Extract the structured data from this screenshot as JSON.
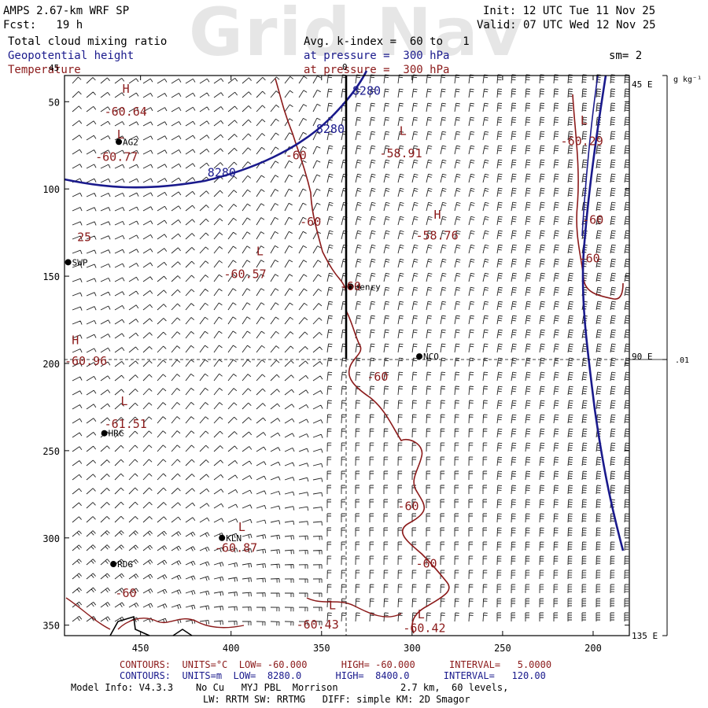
{
  "header": {
    "left_line1": "AMPS 2.67-km WRF SP",
    "left_line2": "Fcst:   19 h",
    "field1": "Total cloud mixing ratio",
    "field2": "Geopotential height",
    "field3": "Temperature",
    "avg": "Avg. k-index =  60 to   1",
    "press1": "at pressure =  300 hPa",
    "press2": "at pressure =  300 hPa",
    "init": "Init: 12 UTC Tue 11 Nov 25",
    "valid": "Valid: 07 UTC Wed 12 Nov 25",
    "sm": "sm= 2",
    "watermark": "Grid Nav"
  },
  "axes": {
    "y_ticks": [
      {
        "label": "50",
        "v": 50
      },
      {
        "label": "100",
        "v": 100
      },
      {
        "label": "150",
        "v": 150
      },
      {
        "label": "200",
        "v": 200
      },
      {
        "label": "250",
        "v": 250
      },
      {
        "label": "300",
        "v": 300
      },
      {
        "label": "350",
        "v": 350
      }
    ],
    "x_ticks": [
      {
        "label": "450",
        "v": 450
      },
      {
        "label": "400",
        "v": 400
      },
      {
        "label": "350",
        "v": 350
      },
      {
        "label": "300",
        "v": 300
      },
      {
        "label": "250",
        "v": 250
      },
      {
        "label": "200",
        "v": 200
      }
    ],
    "x_range": [
      492,
      180
    ],
    "y_range": [
      35,
      356
    ],
    "right_labels": [
      {
        "label": "45 E",
        "v": 45
      },
      {
        "label": "90 E",
        "v": 90
      },
      {
        "label": "135 E",
        "v": 135
      }
    ],
    "colorbar_top": "g kg⁻¹",
    "colorbar_mid": ".01",
    "top_tick_left": "45",
    "top_tick_mid": "0"
  },
  "stations": [
    {
      "name": "AG2",
      "x": 462,
      "y": 73
    },
    {
      "name": "SWP",
      "x": 490,
      "y": 142
    },
    {
      "name": "Henry",
      "x": 334,
      "y": 156
    },
    {
      "name": "NCO",
      "x": 296,
      "y": 196
    },
    {
      "name": "HRC",
      "x": 470,
      "y": 240
    },
    {
      "name": "KLN",
      "x": 405,
      "y": 300
    },
    {
      "name": "RDG",
      "x": 465,
      "y": 315
    }
  ],
  "labels": {
    "height": [
      {
        "text": "8280",
        "x": 333,
        "y": 46
      },
      {
        "text": "8280",
        "x": 353,
        "y": 68
      },
      {
        "text": "8280",
        "x": 413,
        "y": 93
      }
    ],
    "temp": [
      {
        "text": "H",
        "x": 460,
        "y": 45
      },
      {
        "text": "-60.64",
        "x": 470,
        "y": 58
      },
      {
        "text": "L",
        "x": 463,
        "y": 71
      },
      {
        "text": "-60.77",
        "x": 475,
        "y": 84
      },
      {
        "text": "-60",
        "x": 370,
        "y": 83
      },
      {
        "text": "L",
        "x": 307,
        "y": 69
      },
      {
        "text": "-58.91",
        "x": 318,
        "y": 82
      },
      {
        "text": "-60",
        "x": 362,
        "y": 121
      },
      {
        "text": "H",
        "x": 288,
        "y": 117
      },
      {
        "text": "-58.76",
        "x": 298,
        "y": 129
      },
      {
        "text": "L",
        "x": 207,
        "y": 63
      },
      {
        "text": "-60.29",
        "x": 218,
        "y": 75
      },
      {
        "text": "-60",
        "x": 206,
        "y": 120
      },
      {
        "text": "-60",
        "x": 208,
        "y": 142
      },
      {
        "text": "L",
        "x": 386,
        "y": 138
      },
      {
        "text": "-60.57",
        "x": 404,
        "y": 151
      },
      {
        "text": "25",
        "x": 485,
        "y": 130
      },
      {
        "text": "-60",
        "x": 340,
        "y": 158
      },
      {
        "text": "H",
        "x": 488,
        "y": 189
      },
      {
        "text": "-60.96",
        "x": 492,
        "y": 201
      },
      {
        "text": "-60",
        "x": 325,
        "y": 210
      },
      {
        "text": "L",
        "x": 461,
        "y": 224
      },
      {
        "text": "-61.51",
        "x": 470,
        "y": 237
      },
      {
        "text": "-60",
        "x": 308,
        "y": 284
      },
      {
        "text": "L",
        "x": 396,
        "y": 296
      },
      {
        "text": "-60.87",
        "x": 409,
        "y": 308
      },
      {
        "text": "-60",
        "x": 298,
        "y": 317
      },
      {
        "text": "-60",
        "x": 464,
        "y": 334
      },
      {
        "text": "L",
        "x": 346,
        "y": 341
      },
      {
        "text": "-60.43",
        "x": 364,
        "y": 352
      },
      {
        "text": "L",
        "x": 297,
        "y": 346
      },
      {
        "text": "-60.42",
        "x": 305,
        "y": 354
      }
    ]
  },
  "footer": {
    "red_line": "CONTOURS:  UNITS=°C  LOW= -60.000      HIGH= -60.000      INTERVAL=   5.0000",
    "blue_line": "CONTOURS:  UNITS=m  LOW=  8280.0      HIGH=  8400.0      INTERVAL=   120.00",
    "model_line1": "Model Info: V4.3.3    No Cu   MYJ PBL  Morrison           2.7 km,  60 levels,",
    "model_line2": "LW: RRTM SW: RRTMG   DIFF: simple KM: 2D Smagor"
  },
  "colors": {
    "height": "#1a1a8c",
    "temp": "#8b1a1a",
    "wind": "#000000"
  }
}
